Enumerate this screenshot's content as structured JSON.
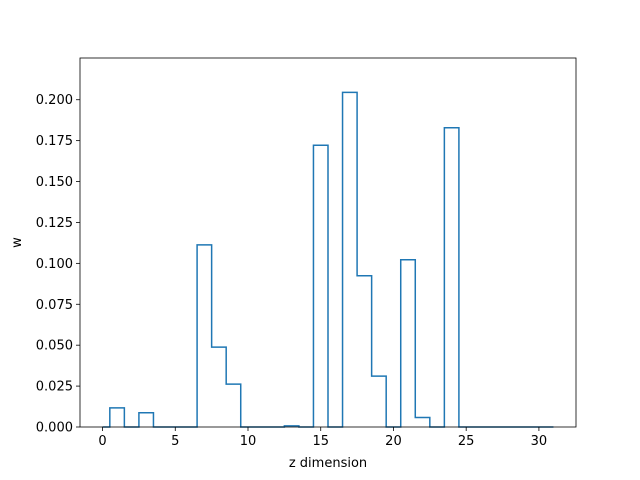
{
  "chart_data": {
    "type": "step",
    "title": "",
    "xlabel": "z dimension",
    "ylabel": "w",
    "xlim": [
      -1.55,
      32.55
    ],
    "ylim": [
      0,
      0.2255
    ],
    "xticks": [
      0,
      5,
      10,
      15,
      20,
      25,
      30
    ],
    "xtick_labels": [
      "0",
      "5",
      "10",
      "15",
      "20",
      "25",
      "30"
    ],
    "yticks": [
      0.0,
      0.025,
      0.05,
      0.075,
      0.1,
      0.125,
      0.15,
      0.175,
      0.2
    ],
    "ytick_labels": [
      "0.000",
      "0.025",
      "0.050",
      "0.075",
      "0.100",
      "0.125",
      "0.150",
      "0.175",
      "0.200"
    ],
    "grid": false,
    "line_color": "#1f77b4",
    "x": [
      0,
      1,
      2,
      3,
      4,
      5,
      6,
      7,
      8,
      9,
      10,
      11,
      12,
      13,
      14,
      15,
      16,
      17,
      18,
      19,
      20,
      21,
      22,
      23,
      24,
      25,
      26,
      27,
      28,
      29,
      30,
      31
    ],
    "values": [
      0.0,
      0.0117,
      0.0,
      0.0087,
      0.0,
      0.0,
      0.0,
      0.1113,
      0.0488,
      0.0262,
      0.0,
      0.0,
      0.0,
      0.0007,
      0.0,
      0.1722,
      0.0,
      0.2045,
      0.0924,
      0.0311,
      0.0,
      0.1022,
      0.0058,
      0.0,
      0.1829,
      0.0,
      0.0,
      0.0,
      0.0,
      0.0,
      0.0,
      0.0
    ]
  }
}
